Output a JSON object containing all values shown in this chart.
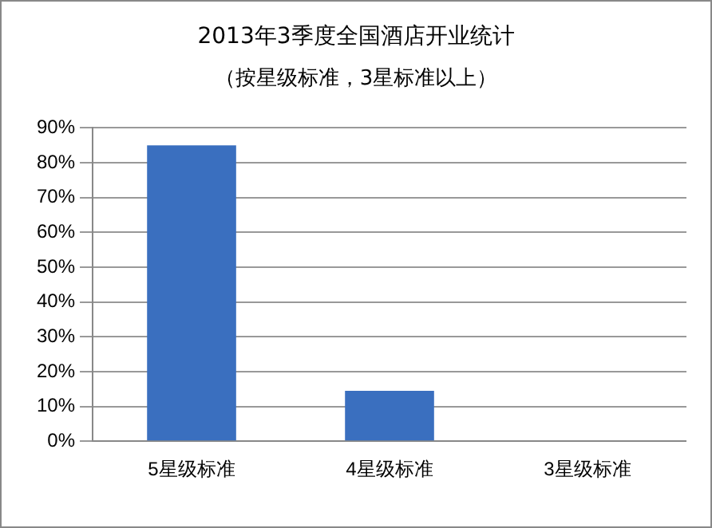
{
  "chart_data": {
    "type": "bar",
    "title": "2013年3季度全国酒店开业统计",
    "subtitle": "（按星级标准，3星标准以上）",
    "categories": [
      "5星级标准",
      "4星级标准",
      "3星级标准"
    ],
    "values": [
      85,
      14.5,
      0
    ],
    "color": "#3a6fbf",
    "ylim": [
      0,
      90
    ],
    "yticks": [
      {
        "value": 0,
        "label": "0%"
      },
      {
        "value": 10,
        "label": "10%"
      },
      {
        "value": 20,
        "label": "20%"
      },
      {
        "value": 30,
        "label": "30%"
      },
      {
        "value": 40,
        "label": "40%"
      },
      {
        "value": 50,
        "label": "50%"
      },
      {
        "value": 60,
        "label": "60%"
      },
      {
        "value": 70,
        "label": "70%"
      },
      {
        "value": 80,
        "label": "80%"
      },
      {
        "value": 90,
        "label": "90%"
      }
    ],
    "grid": "y",
    "legend": false
  }
}
